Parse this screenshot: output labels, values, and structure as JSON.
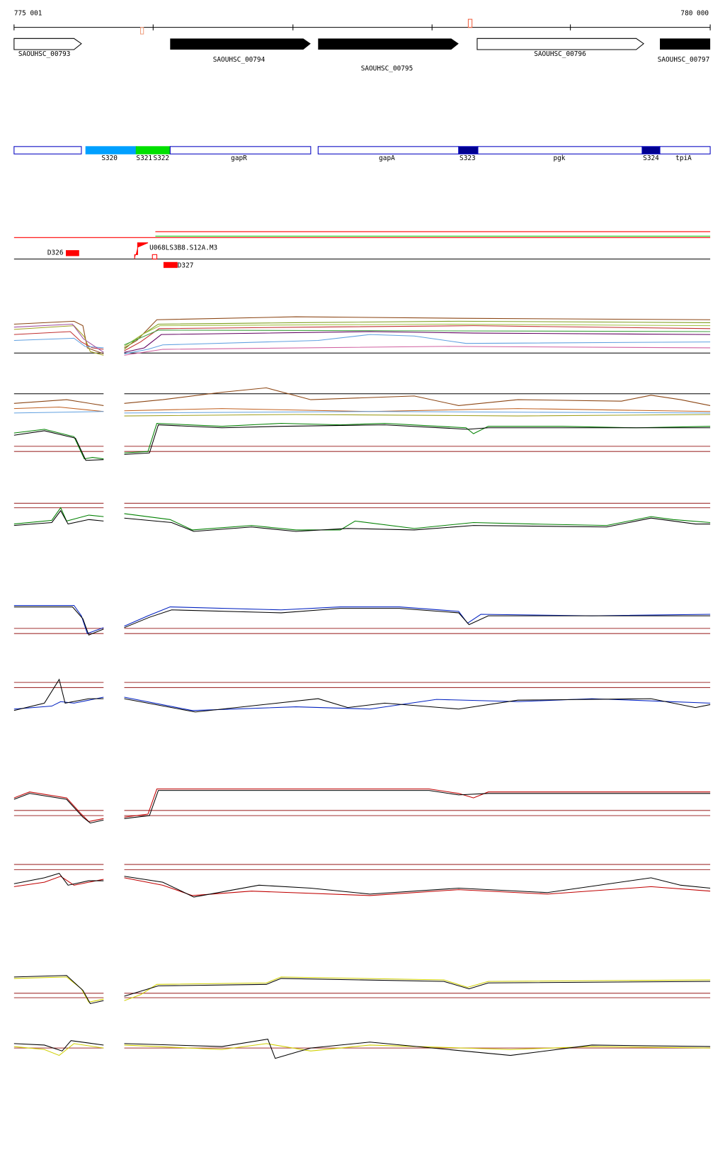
{
  "ruler": {
    "start": "775 001",
    "end": "780 000"
  },
  "genes": [
    {
      "label": "SAOUHSC_00793"
    },
    {
      "label": "SAOUHSC_00794"
    },
    {
      "label": "SAOUHSC_00795"
    },
    {
      "label": "SAOUHSC_00796"
    },
    {
      "label": "SAOUHSC_00797"
    }
  ],
  "features": [
    {
      "label": "S320"
    },
    {
      "label": "S321"
    },
    {
      "label": "S322"
    },
    {
      "label": "gapR"
    },
    {
      "label": "gapA"
    },
    {
      "label": "S323"
    },
    {
      "label": "pgk"
    },
    {
      "label": "S324"
    },
    {
      "label": "tpiA"
    }
  ],
  "annotations": [
    {
      "label": "D326"
    },
    {
      "label": "U068LS3B8.S12A.M3"
    },
    {
      "label": "D327"
    }
  ]
}
